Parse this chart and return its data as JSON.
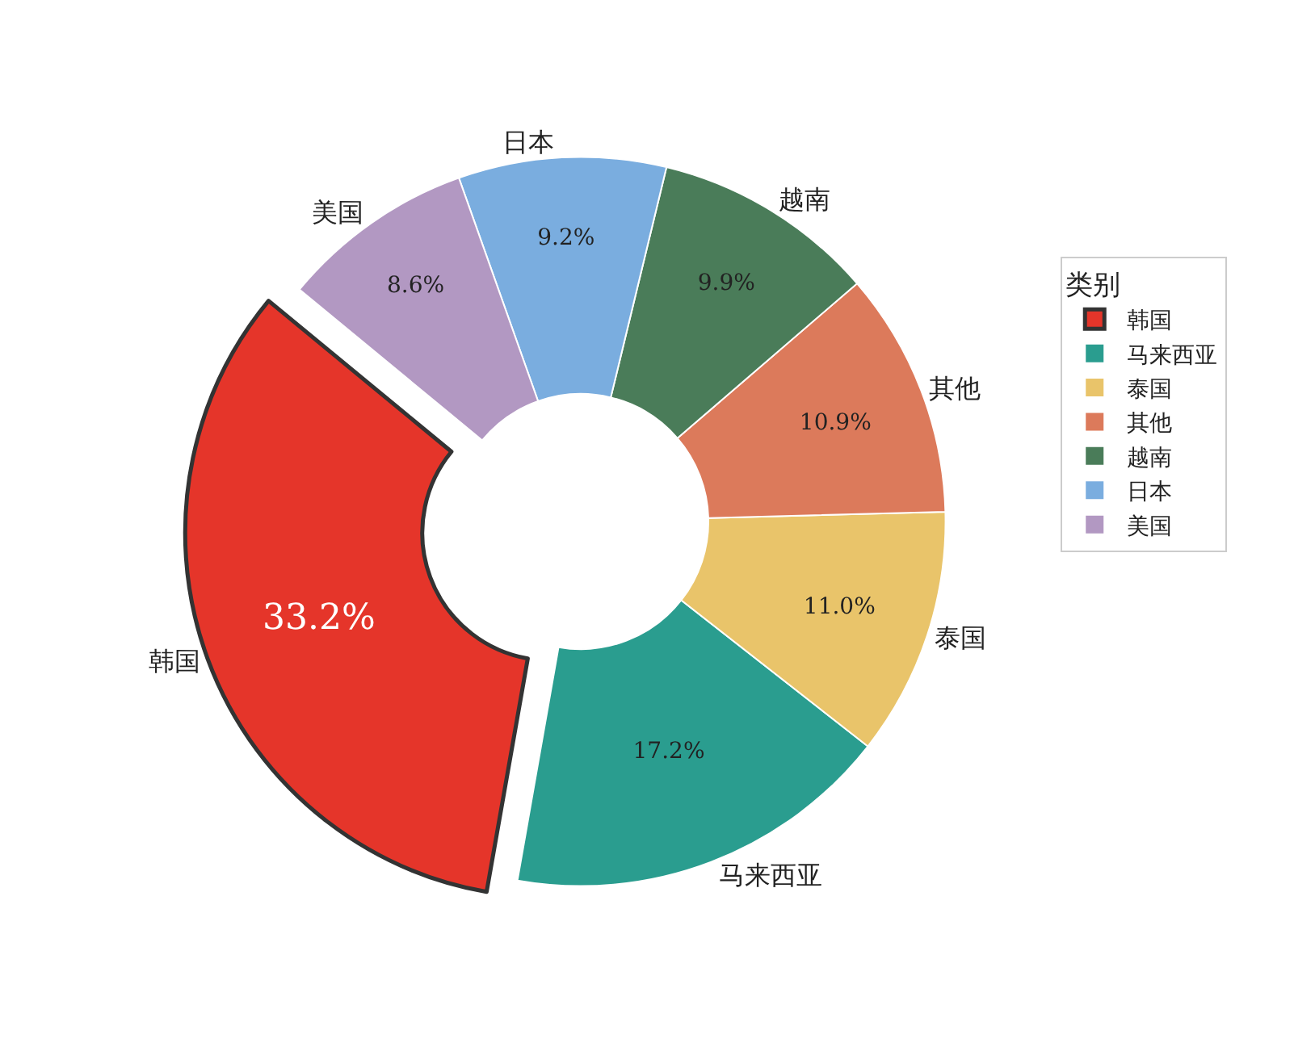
{
  "chart_data": {
    "type": "donut",
    "legend_title": "类别",
    "legend": "right",
    "data_labels": true,
    "categories": [
      "韩国",
      "马来西亚",
      "泰国",
      "其他",
      "越南",
      "日本",
      "美国"
    ],
    "values": [
      33.2,
      17.2,
      11.0,
      10.9,
      9.9,
      9.2,
      8.6
    ],
    "value_labels": [
      "33.2%",
      "17.2%",
      "11.0%",
      "10.9%",
      "9.9%",
      "9.2%",
      "8.6%"
    ],
    "colors": [
      "#e5352a",
      "#2a9d8f",
      "#e9c46a",
      "#dc7a5b",
      "#4a7c59",
      "#7aaddf",
      "#b298c2"
    ]
  }
}
